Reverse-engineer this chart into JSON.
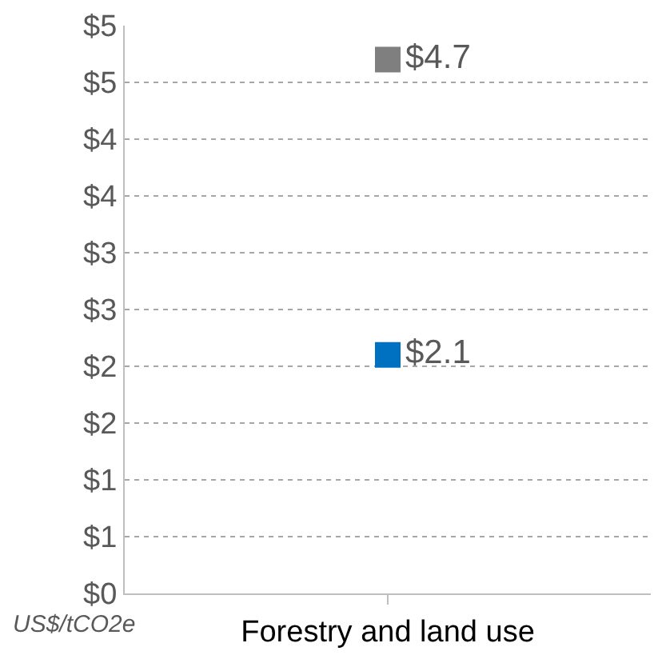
{
  "chart_data": {
    "type": "scatter",
    "categories": [
      "Forestry and land use"
    ],
    "series": [
      {
        "color": "#7f7f7f",
        "values": [
          4.7
        ],
        "value_labels": [
          "$4.7"
        ]
      },
      {
        "color": "#0070c0",
        "values": [
          2.1
        ],
        "value_labels": [
          "$2.1"
        ]
      }
    ],
    "ylim": [
      0,
      5
    ],
    "yticks": [
      {
        "value": 0,
        "label": "$0"
      },
      {
        "value": 0.5,
        "label": "$1"
      },
      {
        "value": 1,
        "label": "$1"
      },
      {
        "value": 1.5,
        "label": "$2"
      },
      {
        "value": 2,
        "label": "$2"
      },
      {
        "value": 2.5,
        "label": "$3"
      },
      {
        "value": 3,
        "label": "$3"
      },
      {
        "value": 3.5,
        "label": "$4"
      },
      {
        "value": 4,
        "label": "$4"
      },
      {
        "value": 4.5,
        "label": "$5"
      },
      {
        "value": 5,
        "label": "$5"
      }
    ],
    "grid": "y",
    "marker": "square",
    "annotations": [
      "US$/tCO2e"
    ]
  }
}
